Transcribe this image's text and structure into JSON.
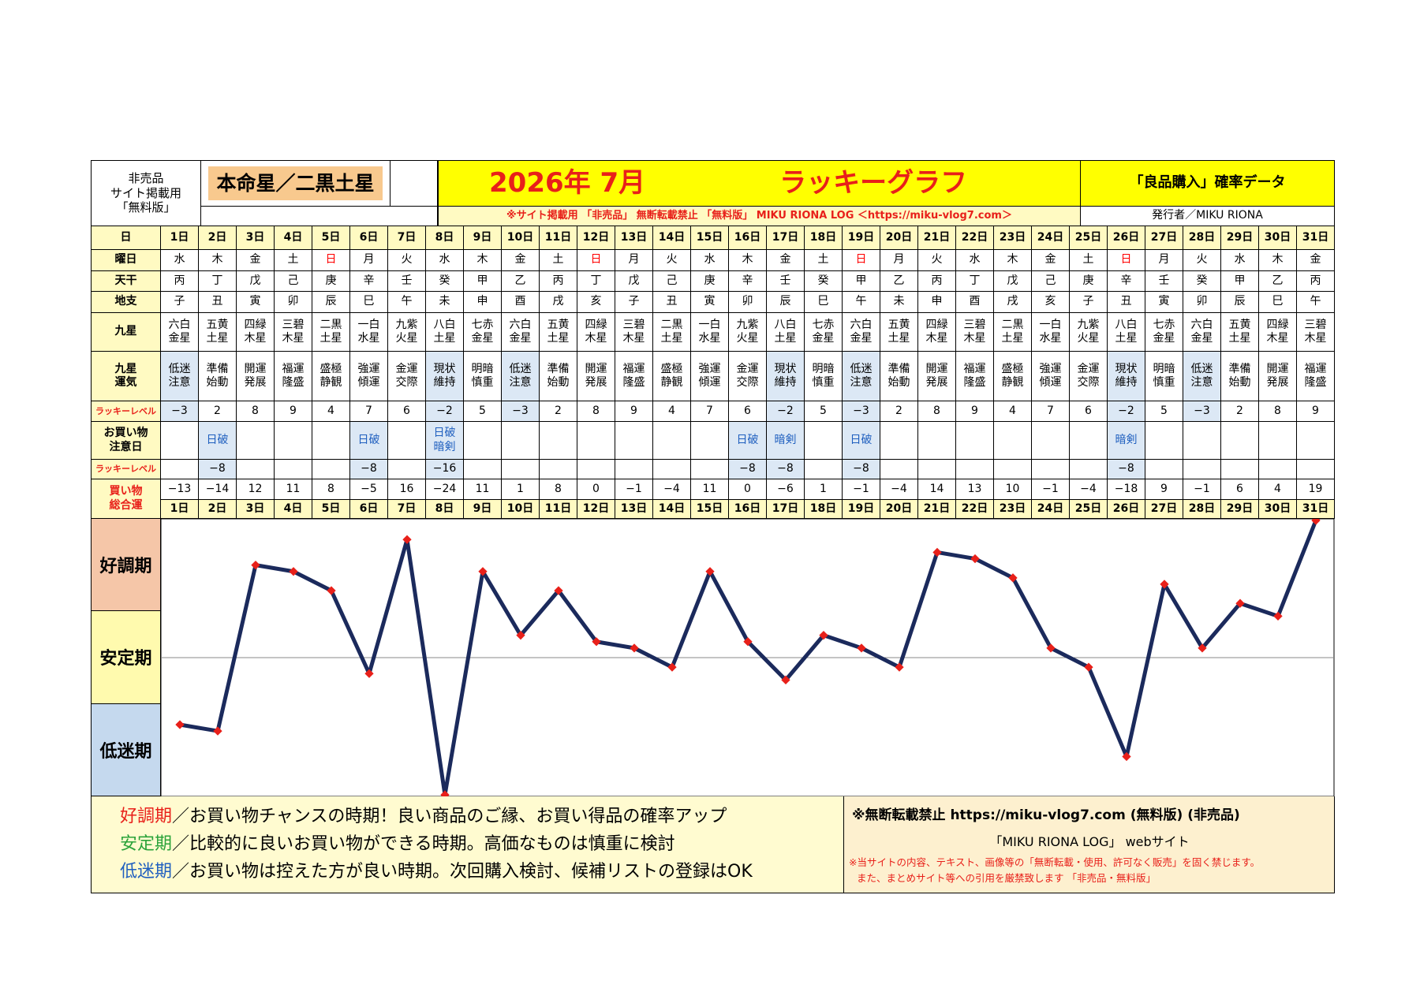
{
  "header": {
    "note_lines": [
      "非売品",
      "サイト掲載用",
      "「無料版」"
    ],
    "honmei": "本命星／二黒土星",
    "year_month": "2026年 7月",
    "graph_title": "ラッキーグラフ",
    "category": "「良品購入」確率データ",
    "notice": "※サイト掲載用 「非売品」 無断転載禁止 「無料版」 MIKU RIONA LOG ＜https://miku-vlog7.com＞",
    "publisher": "発行者／MIKU RIONA"
  },
  "row_labels": {
    "day": "日",
    "weekday": "曜日",
    "tenkan": "天干",
    "chishi": "地支",
    "kyusei": "九星",
    "kyusei_unki": "九星\n運気",
    "lucky_level": "ラッキーレベル",
    "shopping_caution": "お買い物\n注意日",
    "lucky_level2": "ラッキーレベル",
    "shopping_total": "買い物\n総合運"
  },
  "days": [
    "1日",
    "2日",
    "3日",
    "4日",
    "5日",
    "6日",
    "7日",
    "8日",
    "9日",
    "10日",
    "11日",
    "12日",
    "13日",
    "14日",
    "15日",
    "16日",
    "17日",
    "18日",
    "19日",
    "20日",
    "21日",
    "22日",
    "23日",
    "24日",
    "25日",
    "26日",
    "27日",
    "28日",
    "29日",
    "30日",
    "31日"
  ],
  "weekdays": [
    "水",
    "木",
    "金",
    "土",
    "日",
    "月",
    "火",
    "水",
    "木",
    "金",
    "土",
    "日",
    "月",
    "火",
    "水",
    "木",
    "金",
    "土",
    "日",
    "月",
    "火",
    "水",
    "木",
    "金",
    "土",
    "日",
    "月",
    "火",
    "水",
    "木",
    "金"
  ],
  "tenkan": [
    "丙",
    "丁",
    "戊",
    "己",
    "庚",
    "辛",
    "壬",
    "癸",
    "甲",
    "乙",
    "丙",
    "丁",
    "戊",
    "己",
    "庚",
    "辛",
    "壬",
    "癸",
    "甲",
    "乙",
    "丙",
    "丁",
    "戊",
    "己",
    "庚",
    "辛",
    "壬",
    "癸",
    "甲",
    "乙",
    "丙"
  ],
  "chishi": [
    "子",
    "丑",
    "寅",
    "卯",
    "辰",
    "巳",
    "午",
    "未",
    "申",
    "酉",
    "戌",
    "亥",
    "子",
    "丑",
    "寅",
    "卯",
    "辰",
    "巳",
    "午",
    "未",
    "申",
    "酉",
    "戌",
    "亥",
    "子",
    "丑",
    "寅",
    "卯",
    "辰",
    "巳",
    "午"
  ],
  "kyusei": [
    "六白\n金星",
    "五黄\n土星",
    "四緑\n木星",
    "三碧\n木星",
    "二黒\n土星",
    "一白\n水星",
    "九紫\n火星",
    "八白\n土星",
    "七赤\n金星",
    "六白\n金星",
    "五黄\n土星",
    "四緑\n木星",
    "三碧\n木星",
    "二黒\n土星",
    "一白\n水星",
    "九紫\n火星",
    "八白\n土星",
    "七赤\n金星",
    "六白\n金星",
    "五黄\n土星",
    "四緑\n木星",
    "三碧\n木星",
    "二黒\n土星",
    "一白\n水星",
    "九紫\n火星",
    "八白\n土星",
    "七赤\n金星",
    "六白\n金星",
    "五黄\n土星",
    "四緑\n木星",
    "三碧\n木星"
  ],
  "unki": [
    "低迷\n注意",
    "準備\n始動",
    "開運\n発展",
    "福運\n隆盛",
    "盛極\n静観",
    "強運\n傾運",
    "金運\n交際",
    "現状\n維持",
    "明暗\n慎重",
    "低迷\n注意",
    "準備\n始動",
    "開運\n発展",
    "福運\n隆盛",
    "盛極\n静観",
    "強運\n傾運",
    "金運\n交際",
    "現状\n維持",
    "明暗\n慎重",
    "低迷\n注意",
    "準備\n始動",
    "開運\n発展",
    "福運\n隆盛",
    "盛極\n静観",
    "強運\n傾運",
    "金運\n交際",
    "現状\n維持",
    "明暗\n慎重",
    "低迷\n注意",
    "準備\n始動",
    "開運\n発展",
    "福運\n隆盛"
  ],
  "lucky_level": [
    "−3",
    "2",
    "8",
    "9",
    "4",
    "7",
    "6",
    "−2",
    "5",
    "−3",
    "2",
    "8",
    "9",
    "4",
    "7",
    "6",
    "−2",
    "5",
    "−3",
    "2",
    "8",
    "9",
    "4",
    "7",
    "6",
    "−2",
    "5",
    "−3",
    "2",
    "8",
    "9"
  ],
  "caution": [
    "",
    "日破",
    "",
    "",
    "",
    "日破",
    "",
    "日破\n暗剣",
    "",
    "",
    "",
    "",
    "",
    "",
    "",
    "日破",
    "暗剣",
    "",
    "日破",
    "",
    "",
    "",
    "",
    "",
    "",
    "暗剣",
    "",
    "",
    "",
    "",
    ""
  ],
  "lucky_level2": [
    "",
    "−8",
    "",
    "",
    "",
    "−8",
    "",
    "−16",
    "",
    "",
    "",
    "",
    "",
    "",
    "",
    "−8",
    "−8",
    "",
    "−8",
    "",
    "",
    "",
    "",
    "",
    "",
    "−8",
    "",
    "",
    "",
    "",
    ""
  ],
  "total": [
    "−13",
    "−14",
    "12",
    "11",
    "8",
    "−5",
    "16",
    "−24",
    "11",
    "1",
    "8",
    "0",
    "−1",
    "−4",
    "11",
    "0",
    "−6",
    "1",
    "−1",
    "−4",
    "14",
    "13",
    "10",
    "−1",
    "−4",
    "−18",
    "9",
    "−1",
    "6",
    "4",
    "19"
  ],
  "highlight_days": [
    1,
    8,
    10,
    17,
    19,
    26,
    28
  ],
  "chart_data": {
    "type": "line",
    "categories": [
      "1日",
      "2日",
      "3日",
      "4日",
      "5日",
      "6日",
      "7日",
      "8日",
      "9日",
      "10日",
      "11日",
      "12日",
      "13日",
      "14日",
      "15日",
      "16日",
      "17日",
      "18日",
      "19日",
      "20日",
      "21日",
      "22日",
      "23日",
      "24日",
      "25日",
      "26日",
      "27日",
      "28日",
      "29日",
      "30日",
      "31日"
    ],
    "series": [
      {
        "values": [
          -13,
          -14,
          12,
          11,
          8,
          -5,
          16,
          -24,
          11,
          1,
          8,
          0,
          -1,
          -4,
          11,
          0,
          -6,
          1,
          -1,
          -4,
          14,
          13,
          10,
          -1,
          -4,
          -18,
          9,
          -1,
          6,
          4,
          19
        ]
      }
    ],
    "ylim": [
      -24,
      19
    ],
    "bands": [
      "好調期",
      "安定期",
      "低迷期"
    ],
    "line_color": "#1b2a5c",
    "marker_color": "#e8201a"
  },
  "legend": {
    "good_label": "好調期",
    "good_text": "／お買い物チャンスの時期！良い商品のご縁、お買い得品の確率アップ",
    "stable_label": "安定期",
    "stable_text": "／比較的に良いお買い物ができる時期。高価なものは慎重に検討",
    "low_label": "低迷期",
    "low_text": "／お買い物は控えた方が良い時期。次回購入検討、候補リストの登録はOK",
    "right_line1": "※無断転載禁止 https://miku-vlog7.com (無料版) (非売品)",
    "right_line2": "「MIKU RIONA LOG」 webサイト",
    "right_line3": "※当サイトの内容、テキスト、画像等の「無断転載・使用、許可なく販売」を固く禁じます。",
    "right_line4": "また、まとめサイト等への引用を厳禁致します 「非売品・無料版」"
  },
  "colors": {
    "good": "#f5c6a8",
    "stable": "#fffaae",
    "low": "#c5d9ee",
    "good_text": "#e8201a",
    "stable_text": "#2aa33a",
    "low_text": "#1f5fbf"
  }
}
